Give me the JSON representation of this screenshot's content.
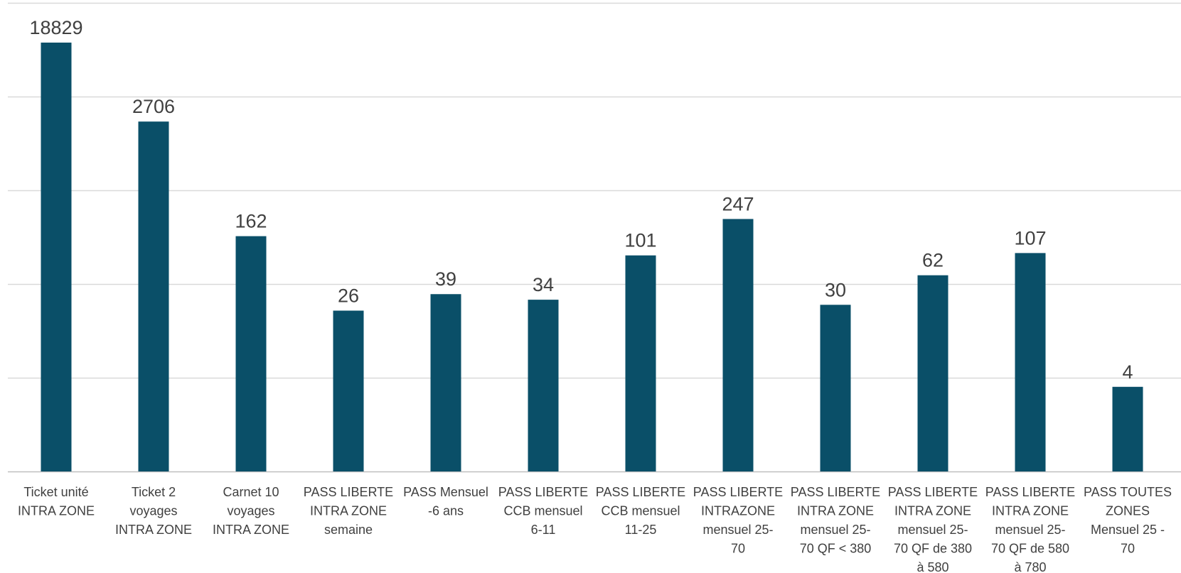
{
  "chart_data": {
    "type": "bar",
    "y_scale": "log",
    "ylim": [
      0.5,
      100000
    ],
    "grid": true,
    "legend": "none",
    "bar_color": "#0a4f68",
    "grid_color": "#d9d9d9",
    "axis_color": "#bfbfbf",
    "label_color": "#404040",
    "categories": [
      [
        "Ticket unité",
        "INTRA ZONE"
      ],
      [
        "Ticket 2",
        "voyages",
        "INTRA ZONE"
      ],
      [
        "Carnet 10",
        "voyages",
        "INTRA ZONE"
      ],
      [
        "PASS LIBERTE",
        "INTRA ZONE",
        "semaine"
      ],
      [
        "PASS Mensuel",
        "-6 ans"
      ],
      [
        "PASS LIBERTE",
        "CCB mensuel",
        "6-11"
      ],
      [
        "PASS LIBERTE",
        "CCB mensuel",
        "11-25"
      ],
      [
        "PASS LIBERTE",
        "INTRAZONE",
        "mensuel 25-",
        "70"
      ],
      [
        "PASS LIBERTE",
        "INTRA ZONE",
        "mensuel 25-",
        "70 QF < 380"
      ],
      [
        "PASS LIBERTE",
        "INTRA ZONE",
        "mensuel 25-",
        "70 QF de 380",
        "à 580"
      ],
      [
        "PASS LIBERTE",
        "INTRA ZONE",
        "mensuel 25-",
        "70 QF de 580",
        "à 780"
      ],
      [
        "PASS TOUTES",
        "ZONES",
        "Mensuel 25 -",
        "70"
      ]
    ],
    "values": [
      18829,
      2706,
      162,
      26,
      39,
      34,
      101,
      247,
      30,
      62,
      107,
      4
    ]
  }
}
